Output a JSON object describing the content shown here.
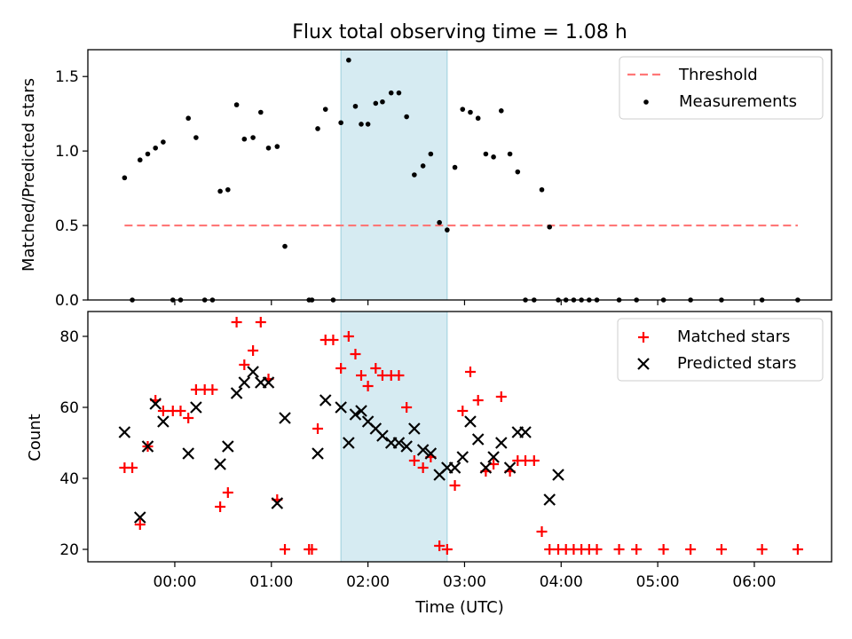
{
  "title": "Flux total observing time = 1.08 h",
  "chart_data": [
    {
      "type": "scatter",
      "ylabel": "Matched/Predicted stars",
      "ylim": [
        0,
        1.68
      ],
      "yticks": [
        0,
        0.5,
        1.0,
        1.5
      ],
      "ytick_labels": [
        "0.0",
        "0.5",
        "1.0",
        "1.5"
      ],
      "xlim": [
        -0.9,
        6.8
      ],
      "highlight_span": [
        1.72,
        2.82
      ],
      "threshold": {
        "name": "Threshold",
        "value": 0.5,
        "x_range": [
          -0.52,
          6.45
        ],
        "color": "#ff7777"
      },
      "series": [
        {
          "name": "Measurements",
          "color": "#000000",
          "x": [
            -0.52,
            -0.44,
            -0.36,
            -0.28,
            -0.2,
            -0.12,
            -0.02,
            0.06,
            0.14,
            0.22,
            0.31,
            0.39,
            0.47,
            0.55,
            0.64,
            0.72,
            0.81,
            0.89,
            0.97,
            1.06,
            1.14,
            1.39,
            1.42,
            1.48,
            1.56,
            1.64,
            1.72,
            1.8,
            1.87,
            1.93,
            2.0,
            2.08,
            2.15,
            2.24,
            2.32,
            2.4,
            2.48,
            2.57,
            2.65,
            2.74,
            2.82,
            2.9,
            2.98,
            3.06,
            3.14,
            3.22,
            3.3,
            3.38,
            3.47,
            3.55,
            3.63,
            3.72,
            3.8,
            3.88,
            3.97,
            4.05,
            4.13,
            4.21,
            4.29,
            4.37,
            4.6,
            4.78,
            5.06,
            5.34,
            5.66,
            6.08,
            6.45
          ],
          "y": [
            0.82,
            0.0,
            0.94,
            0.98,
            1.02,
            1.06,
            0.0,
            0.0,
            1.22,
            1.09,
            0.0,
            0.0,
            0.73,
            0.74,
            1.31,
            1.08,
            1.09,
            1.26,
            1.02,
            1.03,
            0.36,
            0.0,
            0.0,
            1.15,
            1.28,
            0.0,
            1.19,
            1.61,
            1.3,
            1.18,
            1.18,
            1.32,
            1.33,
            1.39,
            1.39,
            1.23,
            0.84,
            0.9,
            0.98,
            0.52,
            0.47,
            0.89,
            1.28,
            1.26,
            1.22,
            0.98,
            0.96,
            1.27,
            0.98,
            0.86,
            0.0,
            0.0,
            0.74,
            0.49,
            0.0,
            0.0,
            0.0,
            0.0,
            0.0,
            0.0,
            0.0,
            0.0,
            0.0,
            0.0,
            0.0,
            0.0,
            0.0
          ]
        }
      ],
      "legend": {
        "position": "top-right",
        "entries": [
          "Threshold",
          "Measurements"
        ]
      }
    },
    {
      "type": "scatter",
      "xlabel": "Time (UTC)",
      "ylabel": "Count",
      "ylim": [
        16.5,
        87
      ],
      "yticks": [
        20,
        40,
        60,
        80
      ],
      "ytick_labels": [
        "20",
        "40",
        "60",
        "80"
      ],
      "xlim": [
        -0.9,
        6.8
      ],
      "xticks": [
        0,
        1,
        2,
        3,
        4,
        5,
        6
      ],
      "xtick_labels": [
        "00:00",
        "01:00",
        "02:00",
        "03:00",
        "04:00",
        "05:00",
        "06:00"
      ],
      "highlight_span": [
        1.72,
        2.82
      ],
      "series": [
        {
          "name": "Matched stars",
          "marker": "+",
          "color": "#ff0000",
          "x": [
            -0.52,
            -0.44,
            -0.36,
            -0.28,
            -0.2,
            -0.12,
            -0.02,
            0.06,
            0.14,
            0.22,
            0.31,
            0.39,
            0.47,
            0.55,
            0.64,
            0.72,
            0.81,
            0.89,
            0.97,
            1.06,
            1.14,
            1.39,
            1.42,
            1.48,
            1.56,
            1.64,
            1.72,
            1.8,
            1.87,
            1.93,
            2.0,
            2.08,
            2.15,
            2.24,
            2.32,
            2.4,
            2.48,
            2.57,
            2.65,
            2.74,
            2.82,
            2.9,
            2.98,
            3.06,
            3.14,
            3.22,
            3.3,
            3.38,
            3.47,
            3.55,
            3.63,
            3.72,
            3.8,
            3.88,
            3.97,
            4.05,
            4.13,
            4.21,
            4.29,
            4.37,
            4.6,
            4.78,
            5.06,
            5.34,
            5.66,
            6.08,
            6.45
          ],
          "y": [
            43,
            43,
            27,
            49,
            62,
            59,
            59,
            59,
            57,
            65,
            65,
            65,
            32,
            36,
            84,
            72,
            76,
            84,
            68,
            34,
            20,
            20,
            20,
            54,
            79,
            79,
            71,
            80,
            75,
            69,
            66,
            71,
            69,
            69,
            69,
            60,
            45,
            43,
            46,
            21,
            20,
            38,
            59,
            70,
            62,
            42,
            44,
            63,
            42,
            45,
            45,
            45,
            25,
            20,
            20,
            20,
            20,
            20,
            20,
            20,
            20,
            20,
            20,
            20,
            20,
            20,
            20
          ]
        },
        {
          "name": "Predicted stars",
          "marker": "x",
          "color": "#000000",
          "x": [
            -0.52,
            -0.36,
            -0.28,
            -0.2,
            -0.12,
            0.14,
            0.22,
            0.47,
            0.55,
            0.64,
            0.72,
            0.81,
            0.89,
            0.97,
            1.06,
            1.14,
            1.48,
            1.56,
            1.72,
            1.8,
            1.87,
            1.93,
            2.0,
            2.08,
            2.15,
            2.24,
            2.32,
            2.4,
            2.48,
            2.57,
            2.65,
            2.74,
            2.82,
            2.9,
            2.98,
            3.06,
            3.14,
            3.22,
            3.3,
            3.38,
            3.47,
            3.55,
            3.63,
            3.88,
            3.97
          ],
          "y": [
            53,
            29,
            49,
            61,
            56,
            47,
            60,
            44,
            49,
            64,
            67,
            70,
            67,
            67,
            33,
            57,
            47,
            62,
            60,
            50,
            58,
            59,
            56,
            54,
            52,
            50,
            50,
            49,
            54,
            48,
            47,
            41,
            43,
            43,
            46,
            56,
            51,
            43,
            46,
            50,
            43,
            53,
            53,
            34,
            41
          ]
        }
      ],
      "legend": {
        "position": "top-right",
        "entries": [
          "Matched stars",
          "Predicted stars"
        ]
      }
    }
  ]
}
